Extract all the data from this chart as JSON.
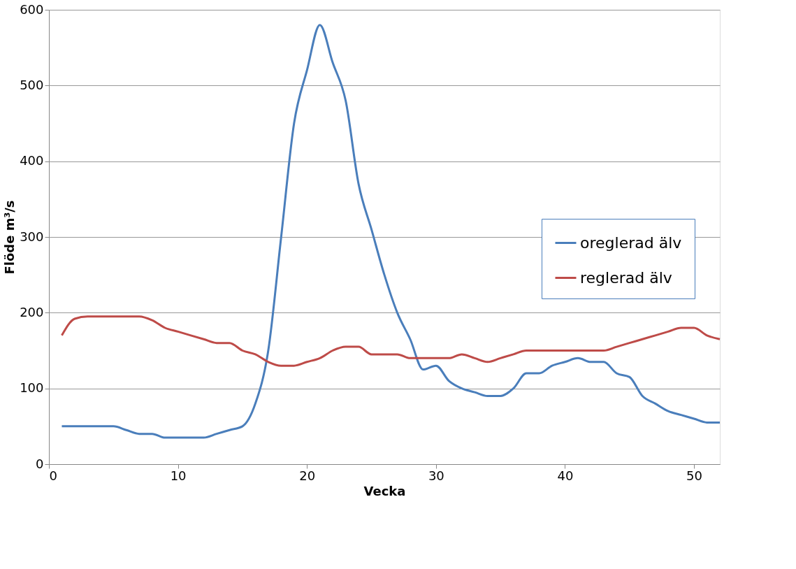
{
  "chart_data": {
    "type": "line",
    "xlabel": "Vecka",
    "ylabel": "Flöde m³/s",
    "x": [
      1,
      2,
      3,
      4,
      5,
      6,
      7,
      8,
      9,
      10,
      11,
      12,
      13,
      14,
      15,
      16,
      17,
      18,
      19,
      20,
      21,
      22,
      23,
      24,
      25,
      26,
      27,
      28,
      29,
      30,
      31,
      32,
      33,
      34,
      35,
      36,
      37,
      38,
      39,
      40,
      41,
      42,
      43,
      44,
      45,
      46,
      47,
      48,
      49,
      50,
      51,
      52
    ],
    "series": [
      {
        "name": "oreglerad älv",
        "color": "#4a7ebb",
        "values": [
          50,
          50,
          50,
          50,
          50,
          45,
          40,
          40,
          35,
          35,
          35,
          35,
          40,
          45,
          50,
          80,
          150,
          300,
          450,
          520,
          580,
          530,
          480,
          370,
          310,
          250,
          200,
          165,
          125,
          130,
          110,
          100,
          95,
          90,
          90,
          100,
          120,
          120,
          130,
          135,
          140,
          135,
          135,
          120,
          115,
          90,
          80,
          70,
          65,
          60,
          55,
          55
        ]
      },
      {
        "name": "reglerad älv",
        "color": "#be4b48",
        "values": [
          170,
          192,
          195,
          195,
          195,
          195,
          195,
          190,
          180,
          175,
          170,
          165,
          160,
          160,
          150,
          145,
          135,
          130,
          130,
          135,
          140,
          150,
          155,
          155,
          145,
          145,
          145,
          140,
          140,
          140,
          140,
          145,
          140,
          135,
          140,
          145,
          150,
          150,
          150,
          150,
          150,
          150,
          150,
          155,
          160,
          165,
          170,
          175,
          180,
          180,
          170,
          165
        ]
      }
    ],
    "xlim": [
      0,
      52
    ],
    "xticks": [
      0,
      10,
      20,
      30,
      40,
      50
    ],
    "ylim": [
      0,
      600
    ],
    "yticks": [
      0,
      100,
      200,
      300,
      400,
      500,
      600
    ],
    "grid": "y",
    "legend": "right",
    "marker": "none",
    "line_style": "solid"
  }
}
